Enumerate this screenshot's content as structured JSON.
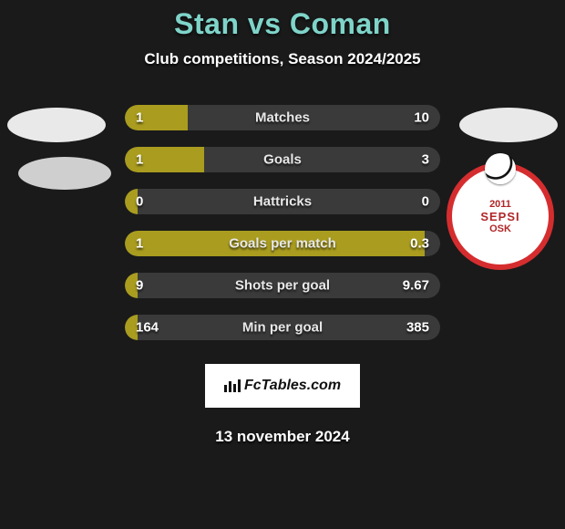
{
  "title": "Stan vs Coman",
  "subtitle": "Club competitions, Season 2024/2025",
  "date": "13 november 2024",
  "fctables_label": "FcTables.com",
  "colors": {
    "title": "#7fd4c9",
    "bar_fill": "#a99c1f",
    "bar_bg": "#3a3a3a",
    "page_bg": "#1a1a1a",
    "logo_red": "#d52d2f"
  },
  "right_logo": {
    "year": "2011",
    "text_top": "SEPSI",
    "text_bottom": "OSK"
  },
  "rows": [
    {
      "label": "Matches",
      "left": "1",
      "right": "10",
      "left_pct": 20
    },
    {
      "label": "Goals",
      "left": "1",
      "right": "3",
      "left_pct": 25
    },
    {
      "label": "Hattricks",
      "left": "0",
      "right": "0",
      "left_pct": 4
    },
    {
      "label": "Goals per match",
      "left": "1",
      "right": "0.3",
      "left_pct": 95
    },
    {
      "label": "Shots per goal",
      "left": "9",
      "right": "9.67",
      "left_pct": 4
    },
    {
      "label": "Min per goal",
      "left": "164",
      "right": "385",
      "left_pct": 4
    }
  ]
}
